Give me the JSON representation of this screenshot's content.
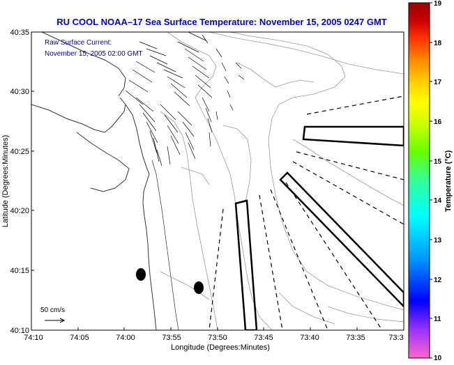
{
  "title": "RU COOL  NOAA–17  Sea Surface Temperature:  November 15, 2005 0247 GMT",
  "inset_label_1": "Raw Surface Current:",
  "inset_label_2": "November 15, 2005 02:00 GMT",
  "scale_label": "50 cm/s",
  "xlabel": "Longitude (Degrees:Minutes)",
  "ylabel": "Latitude (Degrees:Minutes)",
  "xticks": [
    "74:10",
    "74:05",
    "74:00",
    "73:55",
    "73:50",
    "73:45",
    "73:40",
    "73:35",
    "73:3"
  ],
  "yticks": [
    "40:35",
    "40:30",
    "40:25",
    "40:20",
    "40:15",
    "40:10"
  ],
  "colorbar": {
    "label": "Temperature (°C)",
    "ticks": [
      "19",
      "18",
      "17",
      "16",
      "15",
      "14",
      "13",
      "12",
      "11",
      "10"
    ],
    "min": 10,
    "max": 19,
    "colors": [
      "#ff66cc",
      "#9933ff",
      "#0000ff",
      "#0099ff",
      "#00ffff",
      "#33ff99",
      "#66ff00",
      "#ccff00",
      "#ffff00",
      "#ffcc00",
      "#ff8800",
      "#ff3300",
      "#cc0000",
      "#990000"
    ]
  },
  "title_color": "#0000cc"
}
